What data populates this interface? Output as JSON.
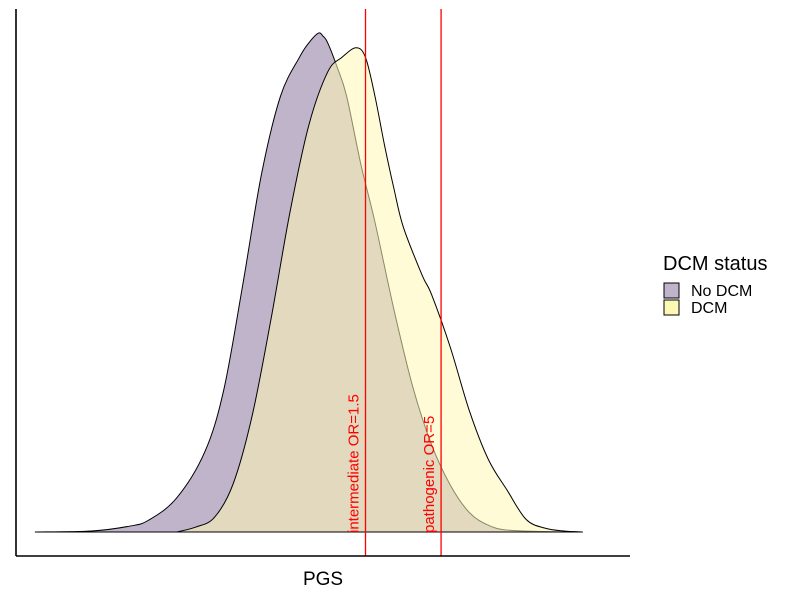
{
  "chart_data": {
    "type": "area",
    "subtype": "density",
    "xlabel": "PGS",
    "ylabel": "",
    "x_ticks": [],
    "y_ticks": [],
    "xlim": [
      -3.2,
      3.3
    ],
    "ylim": [
      0,
      0.54
    ],
    "grid": false,
    "series": [
      {
        "name": "No DCM",
        "color": "#c0b4cb",
        "x": [
          -3.0,
          -2.4,
          -2.0,
          -1.8,
          -1.5,
          -1.2,
          -1.0,
          -0.8,
          -0.6,
          -0.4,
          -0.2,
          -0.1,
          0.0,
          0.05,
          0.1,
          0.2,
          0.3,
          0.45,
          0.6,
          0.8,
          1.0,
          1.2,
          1.4,
          1.6,
          1.8,
          2.0,
          2.4,
          2.8
        ],
        "y": [
          0.0,
          0.001,
          0.006,
          0.012,
          0.035,
          0.083,
          0.147,
          0.255,
          0.37,
          0.45,
          0.49,
          0.505,
          0.515,
          0.512,
          0.505,
          0.48,
          0.45,
          0.38,
          0.32,
          0.23,
          0.15,
          0.09,
          0.048,
          0.02,
          0.007,
          0.002,
          0.0005,
          0.0
        ]
      },
      {
        "name": "DCM",
        "color": "#fdf8b4",
        "x": [
          -1.5,
          -1.3,
          -1.1,
          -0.9,
          -0.7,
          -0.5,
          -0.3,
          -0.1,
          0.1,
          0.25,
          0.4,
          0.5,
          0.6,
          0.7,
          0.8,
          0.9,
          1.1,
          1.2,
          1.4,
          1.6,
          1.8,
          2.0,
          2.2,
          2.4,
          2.6,
          2.8
        ],
        "y": [
          0.0,
          0.005,
          0.015,
          0.05,
          0.12,
          0.22,
          0.33,
          0.42,
          0.475,
          0.49,
          0.5,
          0.49,
          0.45,
          0.4,
          0.355,
          0.315,
          0.265,
          0.245,
          0.19,
          0.125,
          0.075,
          0.043,
          0.013,
          0.004,
          0.001,
          0.0
        ]
      }
    ],
    "reference_lines": [
      {
        "x": 0.5,
        "label": "intermediate OR=1.5",
        "color": "#ff0000"
      },
      {
        "x": 1.3,
        "label": "pathogenic OR=5",
        "color": "#ff0000"
      }
    ],
    "legend": {
      "title": "DCM status",
      "position": "right",
      "entries": [
        "No DCM",
        "DCM"
      ]
    }
  }
}
